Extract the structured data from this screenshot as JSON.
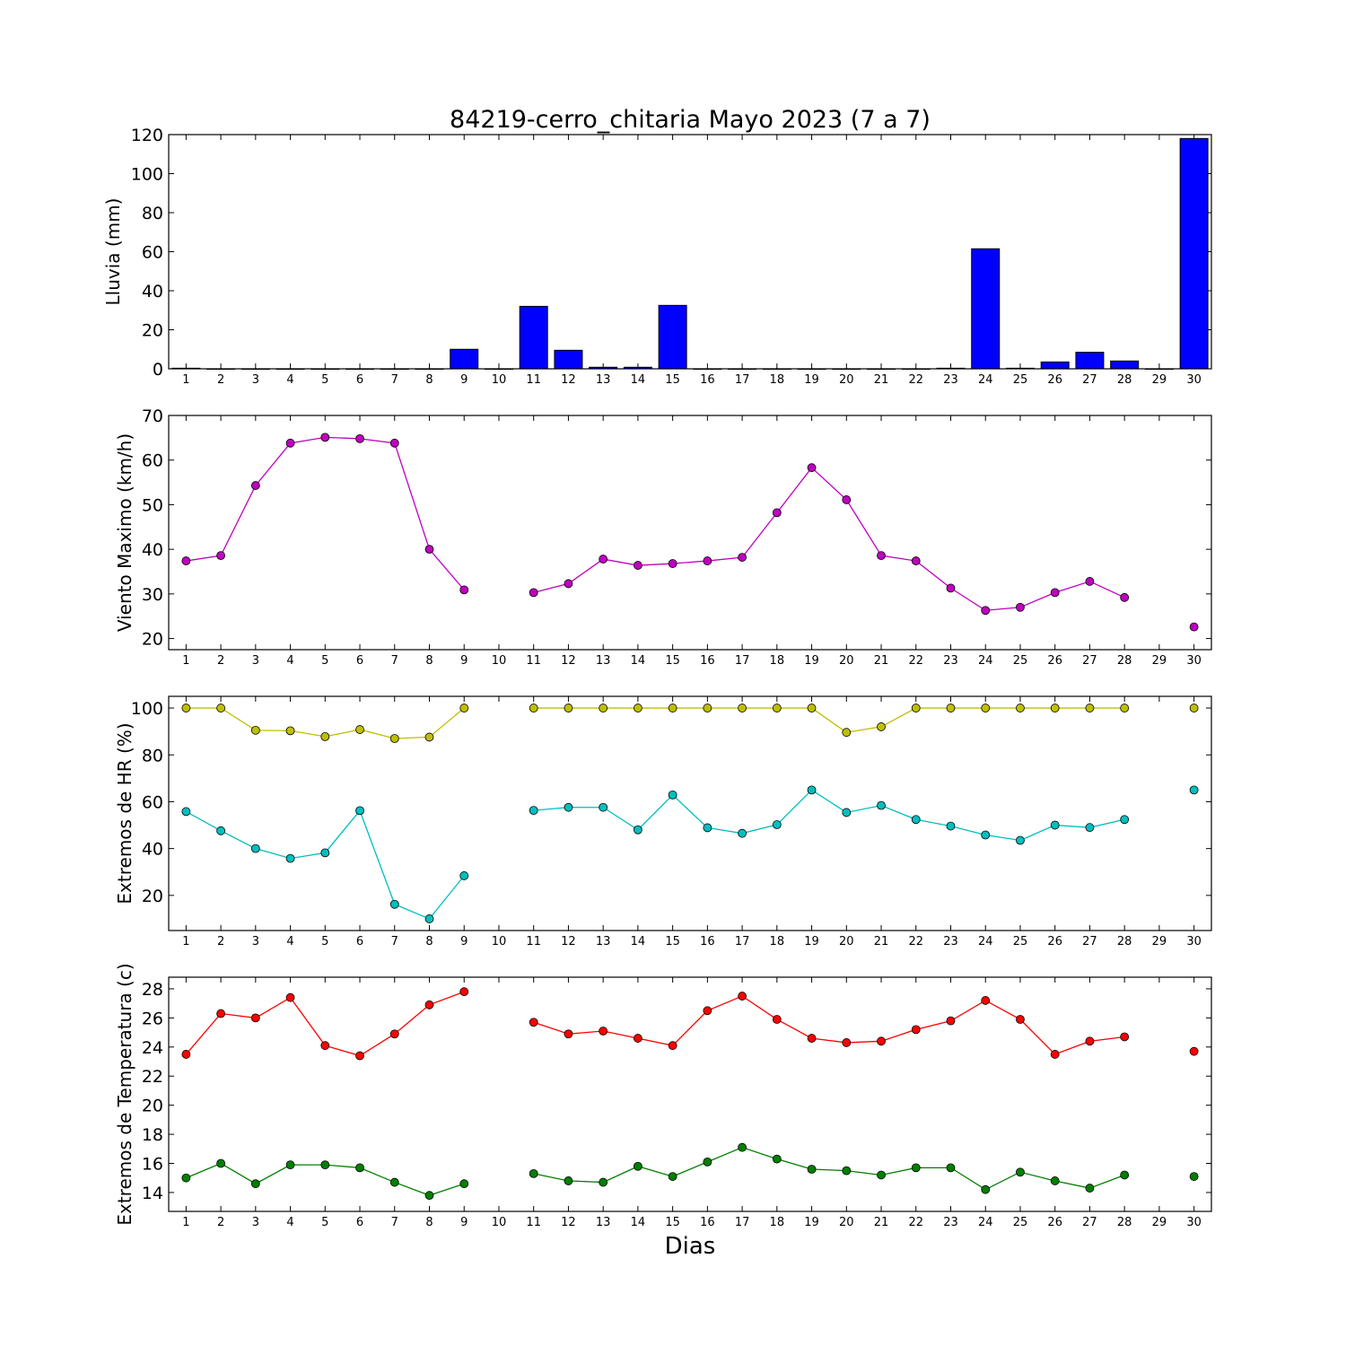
{
  "chart_data": [
    {
      "type": "bar",
      "title": "84219-cerro_chitaria Mayo 2023  (7 a 7)",
      "ylabel": "Lluvia (mm)",
      "xlabel": "",
      "ylim": [
        0,
        120
      ],
      "yticks": [
        0,
        20,
        40,
        60,
        80,
        100,
        120
      ],
      "x": [
        1,
        2,
        3,
        4,
        5,
        6,
        7,
        8,
        9,
        10,
        11,
        12,
        13,
        14,
        15,
        16,
        17,
        18,
        19,
        20,
        21,
        22,
        23,
        24,
        25,
        26,
        27,
        28,
        29,
        30
      ],
      "series": [
        {
          "color": "#0000ff",
          "values": [
            0.3,
            0,
            0,
            0,
            0,
            0,
            0,
            0,
            10,
            0,
            32,
            9.5,
            0.8,
            0.8,
            32.5,
            0,
            0,
            0,
            0,
            0,
            0,
            0,
            0.3,
            61.5,
            0.3,
            3.5,
            8.5,
            4,
            0,
            118
          ]
        }
      ]
    },
    {
      "type": "line",
      "ylabel": "Viento Maximo (km/h)",
      "xlabel": "",
      "ylim": [
        17.5,
        70
      ],
      "yticks": [
        20,
        30,
        40,
        50,
        60,
        70
      ],
      "x": [
        1,
        2,
        3,
        4,
        5,
        6,
        7,
        8,
        9,
        10,
        11,
        12,
        13,
        14,
        15,
        16,
        17,
        18,
        19,
        20,
        21,
        22,
        23,
        24,
        25,
        26,
        27,
        28,
        29,
        30
      ],
      "series": [
        {
          "color": "#bf00bf",
          "values": [
            37.4,
            38.6,
            54.3,
            63.8,
            65.1,
            64.8,
            63.8,
            40,
            30.9,
            null,
            30.3,
            32.3,
            37.8,
            36.4,
            36.8,
            37.4,
            38.2,
            48.2,
            58.3,
            51.1,
            38.6,
            37.4,
            31.3,
            26.3,
            27,
            30.3,
            32.8,
            29.2,
            null,
            22.6
          ]
        }
      ]
    },
    {
      "type": "line",
      "ylabel": "Extremos de HR (%)",
      "xlabel": "",
      "ylim": [
        5,
        105
      ],
      "yticks": [
        20,
        40,
        60,
        80,
        100
      ],
      "x": [
        1,
        2,
        3,
        4,
        5,
        6,
        7,
        8,
        9,
        10,
        11,
        12,
        13,
        14,
        15,
        16,
        17,
        18,
        19,
        20,
        21,
        22,
        23,
        24,
        25,
        26,
        27,
        28,
        29,
        30
      ],
      "series": [
        {
          "color": "#bfbf00",
          "values": [
            100,
            100,
            90.5,
            90.3,
            87.8,
            90.8,
            87,
            87.6,
            100,
            null,
            100,
            100,
            100,
            100,
            100,
            100,
            100,
            100,
            100,
            89.6,
            92,
            100,
            100,
            100,
            100,
            100,
            100,
            100,
            null,
            100
          ]
        },
        {
          "color": "#00bfbf",
          "values": [
            55.8,
            47.6,
            40,
            35.8,
            38.2,
            56.2,
            16.2,
            10,
            28.4,
            null,
            56.3,
            57.6,
            57.6,
            48,
            62.9,
            48.9,
            46.5,
            50.2,
            65,
            55.4,
            58.4,
            52.4,
            49.6,
            45.8,
            43.5,
            50,
            49,
            52.4,
            null,
            65
          ]
        }
      ]
    },
    {
      "type": "line",
      "ylabel": "Extremos de Temperatura (c)",
      "xlabel": "Dias",
      "ylim": [
        12.7,
        28.8
      ],
      "yticks": [
        14,
        16,
        18,
        20,
        22,
        24,
        26,
        28
      ],
      "x": [
        1,
        2,
        3,
        4,
        5,
        6,
        7,
        8,
        9,
        10,
        11,
        12,
        13,
        14,
        15,
        16,
        17,
        18,
        19,
        20,
        21,
        22,
        23,
        24,
        25,
        26,
        27,
        28,
        29,
        30
      ],
      "series": [
        {
          "color": "#ff0000",
          "values": [
            23.5,
            26.3,
            26,
            27.4,
            24.1,
            23.4,
            24.9,
            26.9,
            27.8,
            null,
            25.7,
            24.9,
            25.1,
            24.6,
            24.1,
            26.5,
            27.5,
            25.9,
            24.6,
            24.3,
            24.4,
            25.2,
            25.8,
            27.2,
            25.9,
            23.5,
            24.4,
            24.7,
            null,
            23.7
          ]
        },
        {
          "color": "#007f00",
          "values": [
            15,
            16,
            14.6,
            15.9,
            15.9,
            15.7,
            14.7,
            13.8,
            14.6,
            null,
            15.3,
            14.8,
            14.7,
            15.8,
            15.1,
            16.1,
            17.1,
            16.3,
            15.6,
            15.5,
            15.2,
            15.7,
            15.7,
            14.2,
            15.4,
            14.8,
            14.3,
            15.2,
            null,
            15.1
          ]
        }
      ]
    }
  ]
}
